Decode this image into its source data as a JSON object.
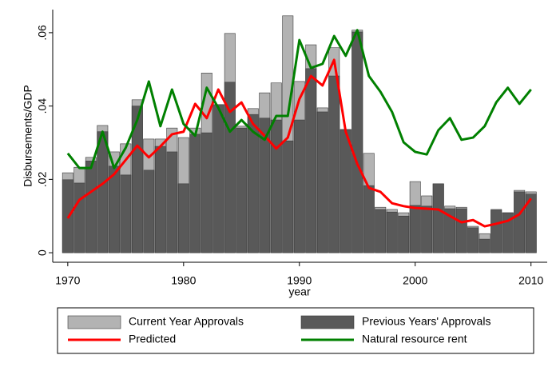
{
  "chart_data": {
    "type": "bar",
    "x_label": "year",
    "y_label": "Disbursements/GDP",
    "x": [
      1970,
      1971,
      1972,
      1973,
      1974,
      1975,
      1976,
      1977,
      1978,
      1979,
      1980,
      1981,
      1982,
      1983,
      1984,
      1985,
      1986,
      1987,
      1988,
      1989,
      1990,
      1991,
      1992,
      1993,
      1994,
      1995,
      1996,
      1997,
      1998,
      1999,
      2000,
      2001,
      2002,
      2003,
      2004,
      2005,
      2006,
      2007,
      2008,
      2009,
      2010
    ],
    "xlim": [
      1968.7,
      2011.4
    ],
    "xticks": [
      1970,
      1980,
      1990,
      2000,
      2010
    ],
    "ylim": [
      -0.0026,
      0.0663
    ],
    "yticks": [
      0,
      {
        "value": 0.02,
        "label": ".02"
      },
      {
        "value": 0.04,
        "label": ".04"
      },
      {
        "value": 0.06,
        "label": ".06"
      }
    ],
    "series": [
      {
        "name": "Current Year Approvals",
        "type": "bar",
        "color": "#b3b3b3",
        "values": [
          0.0218,
          0.0233,
          0.026,
          0.0347,
          0.0275,
          0.0297,
          0.0417,
          0.031,
          0.031,
          0.034,
          0.0314,
          0.034,
          0.049,
          0.0404,
          0.0598,
          0.0345,
          0.0393,
          0.0436,
          0.0463,
          0.0646,
          0.0467,
          0.0567,
          0.0395,
          0.0559,
          0.0336,
          0.0607,
          0.0271,
          0.0124,
          0.0118,
          0.0109,
          0.0194,
          0.0155,
          0.0188,
          0.0127,
          0.0124,
          0.0072,
          0.0052,
          0.0118,
          0.0109,
          0.017,
          0.0166
        ]
      },
      {
        "name": "Previous Years' Approvals",
        "type": "bar",
        "color": "#595959",
        "values": [
          0.0199,
          0.019,
          0.025,
          0.033,
          0.0236,
          0.0212,
          0.04,
          0.0225,
          0.029,
          0.0275,
          0.0188,
          0.0323,
          0.0327,
          0.0404,
          0.0465,
          0.034,
          0.0377,
          0.0367,
          0.0362,
          0.0305,
          0.0362,
          0.0502,
          0.0384,
          0.0482,
          0.0336,
          0.0602,
          0.0183,
          0.0118,
          0.0111,
          0.01,
          0.0129,
          0.0127,
          0.0188,
          0.012,
          0.012,
          0.0068,
          0.0037,
          0.0116,
          0.0109,
          0.0166,
          0.016
        ]
      },
      {
        "name": "Predicted",
        "type": "line",
        "color": "#ff0000",
        "values": [
          0.0094,
          0.0144,
          0.0166,
          0.0188,
          0.0214,
          0.0253,
          0.0292,
          0.026,
          0.029,
          0.0323,
          0.033,
          0.0406,
          0.0367,
          0.0445,
          0.0384,
          0.041,
          0.0351,
          0.0319,
          0.0284,
          0.0314,
          0.0419,
          0.0482,
          0.0456,
          0.0526,
          0.033,
          0.0242,
          0.0177,
          0.0166,
          0.0135,
          0.0127,
          0.0122,
          0.012,
          0.0118,
          0.01,
          0.0083,
          0.0089,
          0.0072,
          0.0079,
          0.0087,
          0.0105,
          0.0148
        ]
      },
      {
        "name": "Natural resource rent",
        "type": "line",
        "color": "#008000",
        "values": [
          0.0271,
          0.0231,
          0.0231,
          0.033,
          0.0231,
          0.0286,
          0.0362,
          0.0467,
          0.0345,
          0.0445,
          0.0351,
          0.0319,
          0.045,
          0.0395,
          0.033,
          0.0362,
          0.033,
          0.0308,
          0.0373,
          0.0373,
          0.058,
          0.0504,
          0.0515,
          0.0591,
          0.0537,
          0.0607,
          0.0482,
          0.0439,
          0.0384,
          0.0301,
          0.0275,
          0.0268,
          0.0334,
          0.0367,
          0.0308,
          0.0314,
          0.0345,
          0.041,
          0.045,
          0.0406,
          0.0445
        ]
      }
    ]
  }
}
